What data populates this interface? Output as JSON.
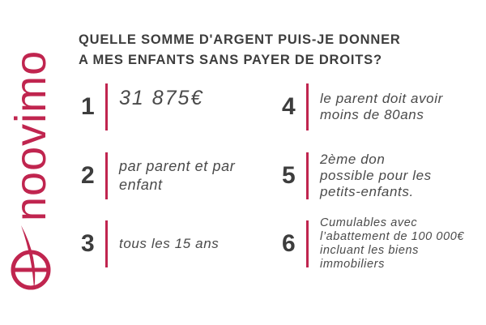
{
  "brand": {
    "name": "noovimo",
    "color": "#c0254f"
  },
  "title": {
    "line1": "QUELLE SOMME D'ARGENT PUIS-JE DONNER",
    "line2": "A MES ENFANTS SANS PAYER DE DROITS?"
  },
  "items": [
    {
      "num": "1",
      "text": "31 875€"
    },
    {
      "num": "2",
      "text": "par parent et par enfant"
    },
    {
      "num": "3",
      "text": "tous les 15 ans"
    },
    {
      "num": "4",
      "text": "le parent doit avoir moins de 80ans"
    },
    {
      "num": "5",
      "text": "2ème don possible pour les petits-enfants."
    },
    {
      "num": "6",
      "text": "Cumulables avec l’abattement de 100 000€ incluant les biens immobiliers"
    }
  ]
}
